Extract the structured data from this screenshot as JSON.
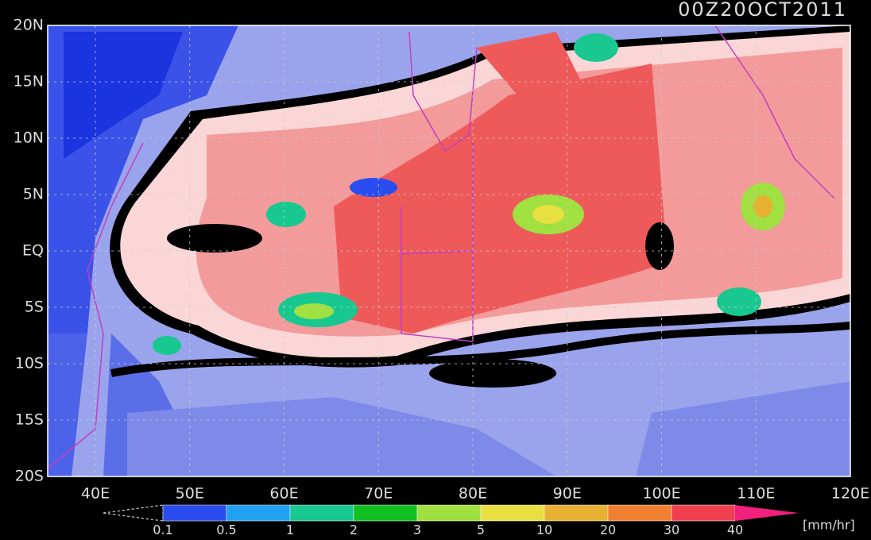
{
  "title": "00Z20OCT2011",
  "lat_labels": [
    "20N",
    "15N",
    "10N",
    "5N",
    "EQ",
    "5S",
    "10S",
    "15S",
    "20S"
  ],
  "lon_labels": [
    "40E",
    "50E",
    "60E",
    "70E",
    "80E",
    "90E",
    "100E",
    "110E",
    "120E"
  ],
  "colorbar": {
    "labels": [
      "0.1",
      "0.5",
      "1",
      "2",
      "3",
      "5",
      "10",
      "20",
      "30",
      "40"
    ],
    "colors": [
      "#2a4cf0",
      "#1fa0f0",
      "#18c890",
      "#10c020",
      "#a0e040",
      "#e8e040",
      "#e8b030",
      "#f08030",
      "#f04050"
    ],
    "over_color": "#f0207c",
    "unit": "[mm/hr]"
  }
}
